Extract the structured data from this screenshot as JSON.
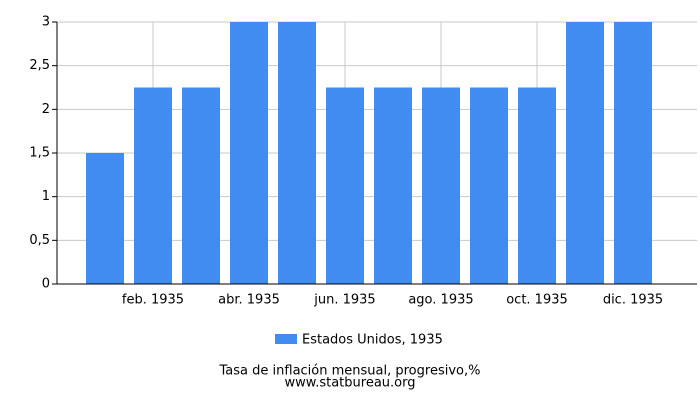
{
  "chart_data": {
    "type": "bar",
    "categories": [
      null,
      "feb. 1935",
      null,
      "abr. 1935",
      null,
      "jun. 1935",
      null,
      "ago. 1935",
      null,
      "oct. 1935",
      null,
      "dic. 1935"
    ],
    "series": [
      {
        "name": "Estados Unidos, 1935",
        "color": "#418cf0",
        "values": [
          1.5,
          2.25,
          2.25,
          3,
          3,
          2.25,
          2.25,
          2.25,
          2.25,
          2.25,
          3,
          3
        ]
      }
    ],
    "ylim": [
      0,
      3
    ],
    "yticks": [
      0,
      {
        "value": 0.5,
        "label": "0,5"
      },
      1,
      {
        "value": 1.5,
        "label": "1,5"
      },
      2,
      {
        "value": 2.5,
        "label": "2,5"
      },
      3
    ],
    "grid": true,
    "legend": "bottom",
    "title": "Tasa de inflación mensual, progresivo,%",
    "subtitle": "www.statbureau.org"
  }
}
